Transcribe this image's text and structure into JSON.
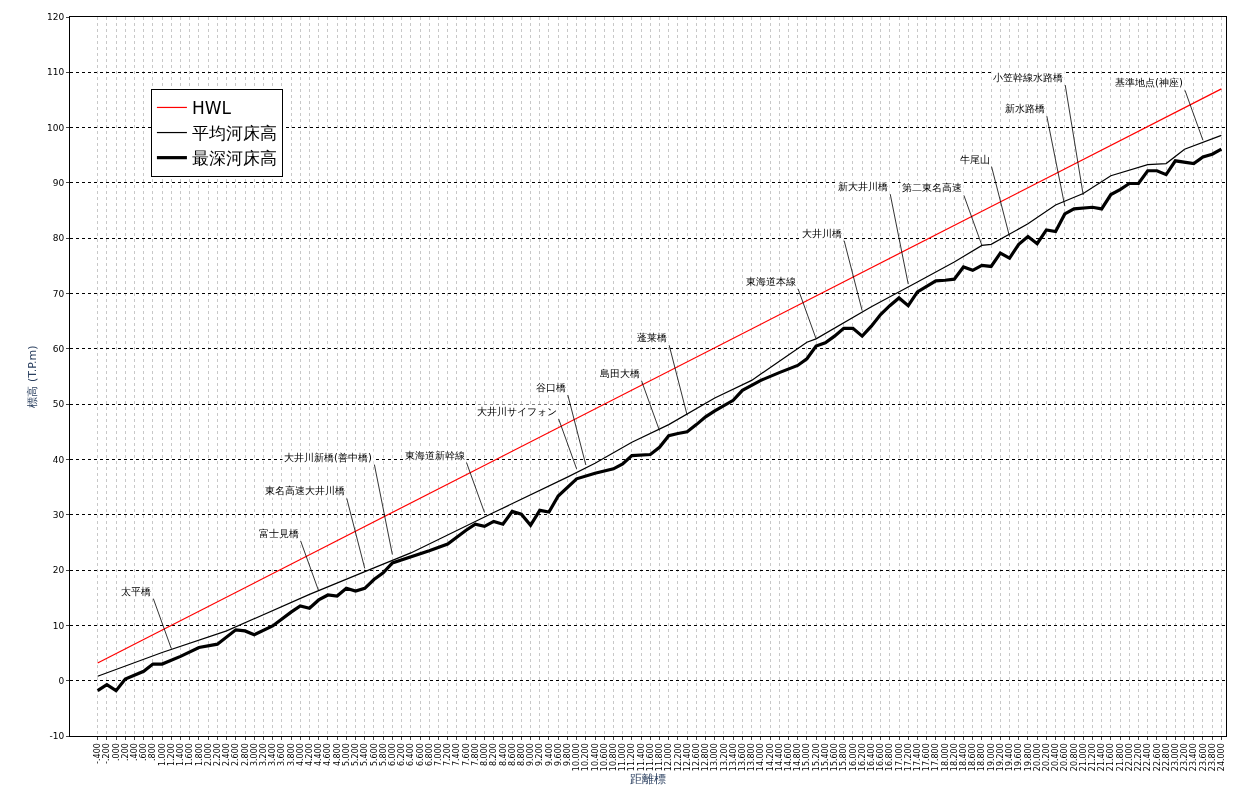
{
  "chart_data": {
    "type": "line",
    "ylabel": "標高 (T.P.m)",
    "xlabel": "距離標",
    "ylim": [
      -10,
      120
    ],
    "yticks": [
      -10,
      0,
      10,
      20,
      30,
      40,
      50,
      60,
      70,
      80,
      90,
      100,
      110,
      120
    ],
    "categories": [
      "-.400",
      "-.200",
      ".000",
      ".200",
      ".400",
      ".600",
      ".800",
      "1.000",
      "1.200",
      "1.400",
      "1.600",
      "1.800",
      "2.000",
      "2.200",
      "2.400",
      "2.600",
      "2.800",
      "3.000",
      "3.200",
      "3.400",
      "3.600",
      "3.800",
      "4.000",
      "4.200",
      "4.400",
      "4.600",
      "4.800",
      "5.000",
      "5.200",
      "5.400",
      "5.600",
      "5.800",
      "6.000",
      "6.200",
      "6.400",
      "6.600",
      "6.800",
      "7.000",
      "7.200",
      "7.400",
      "7.600",
      "7.800",
      "8.000",
      "8.200",
      "8.400",
      "8.600",
      "8.800",
      "9.000",
      "9.200",
      "9.400",
      "9.600",
      "9.800",
      "10.000",
      "10.200",
      "10.400",
      "10.600",
      "10.800",
      "11.000",
      "11.200",
      "11.400",
      "11.600",
      "11.800",
      "12.000",
      "12.200",
      "12.400",
      "12.600",
      "12.800",
      "13.000",
      "13.200",
      "13.400",
      "13.600",
      "13.800",
      "14.000",
      "14.200",
      "14.400",
      "14.600",
      "14.800",
      "15.000",
      "15.200",
      "15.400",
      "15.600",
      "15.800",
      "16.000",
      "16.200",
      "16.400",
      "16.600",
      "16.800",
      "17.000",
      "17.200",
      "17.400",
      "17.600",
      "17.800",
      "18.000",
      "18.200",
      "18.400",
      "18.600",
      "18.800",
      "19.000",
      "19.200",
      "19.400",
      "19.600",
      "19.800",
      "20.000",
      "20.200",
      "20.400",
      "20.600",
      "20.800",
      "21.000",
      "21.200",
      "21.400",
      "21.600",
      "21.800",
      "22.000",
      "22.200",
      "22.400",
      "22.600",
      "22.800",
      "23.000",
      "23.200",
      "23.400",
      "23.600",
      "23.800",
      "24.000"
    ],
    "grid": true,
    "legend": "top left",
    "line_style": "solid",
    "series": [
      {
        "name": "HWL",
        "color": "#ff0000",
        "x": [
          "-.400",
          "24.000"
        ],
        "values": [
          3.2,
          107.0
        ]
      },
      {
        "name": "平均河床高",
        "color": "#000000",
        "x": [
          "-.400",
          "1.000",
          "2.400",
          "4.200",
          "5.600",
          "6.400",
          "8.200",
          "9.800",
          "10.400",
          "11.200",
          "12.000",
          "13.000",
          "13.800",
          "15.000",
          "15.200",
          "16.400",
          "17.400",
          "18.200",
          "18.800",
          "19.000",
          "19.800",
          "20.400",
          "21.000",
          "21.600",
          "22.400",
          "22.800",
          "23.200",
          "24.000"
        ],
        "values": [
          0.8,
          5.1,
          9.0,
          15.6,
          20.4,
          23.1,
          30.4,
          36.8,
          39.3,
          43.1,
          46.3,
          51.1,
          54.3,
          61.2,
          61.8,
          67.6,
          72.1,
          75.7,
          78.7,
          78.9,
          82.6,
          86.0,
          88.1,
          91.3,
          93.3,
          93.5,
          96.1,
          98.6
        ]
      },
      {
        "name": "最深河床高",
        "color": "#000000",
        "x": [
          "-.400",
          "-.200",
          ".000",
          ".200",
          ".600",
          ".800",
          "1.000",
          "1.400",
          "1.800",
          "2.200",
          "2.600",
          "2.800",
          "3.000",
          "3.400",
          "3.800",
          "4.000",
          "4.200",
          "4.400",
          "4.600",
          "4.800",
          "5.000",
          "5.200",
          "5.400",
          "5.600",
          "5.800",
          "6.000",
          "6.800",
          "7.200",
          "7.600",
          "7.800",
          "8.000",
          "8.200",
          "8.400",
          "8.600",
          "8.800",
          "9.000",
          "9.200",
          "9.400",
          "9.600",
          "10.000",
          "10.400",
          "10.800",
          "11.000",
          "11.200",
          "11.600",
          "11.800",
          "12.000",
          "12.200",
          "12.400",
          "12.600",
          "12.800",
          "13.000",
          "13.400",
          "13.600",
          "14.000",
          "14.400",
          "14.800",
          "15.000",
          "15.200",
          "15.400",
          "15.600",
          "15.800",
          "16.000",
          "16.200",
          "16.400",
          "16.600",
          "16.800",
          "17.000",
          "17.200",
          "17.400",
          "17.800",
          "18.000",
          "18.200",
          "18.400",
          "18.600",
          "18.800",
          "19.000",
          "19.200",
          "19.400",
          "19.600",
          "19.800",
          "20.000",
          "20.200",
          "20.400",
          "20.600",
          "20.800",
          "21.200",
          "21.400",
          "21.600",
          "21.800",
          "22.000",
          "22.200",
          "22.400",
          "22.600",
          "22.800",
          "23.000",
          "23.400",
          "23.600",
          "23.800",
          "24.000"
        ],
        "values": [
          -1.8,
          -0.7,
          -1.8,
          0.3,
          1.7,
          3.0,
          3.0,
          4.4,
          6.0,
          6.6,
          9.2,
          9.0,
          8.3,
          9.9,
          12.4,
          13.5,
          13.1,
          14.6,
          15.5,
          15.3,
          16.7,
          16.2,
          16.7,
          18.3,
          19.5,
          21.3,
          23.5,
          24.7,
          27.2,
          28.3,
          27.9,
          28.8,
          28.3,
          30.6,
          30.1,
          28.1,
          30.8,
          30.5,
          33.4,
          36.5,
          37.5,
          38.3,
          39.2,
          40.7,
          40.9,
          42.2,
          44.3,
          44.7,
          45.0,
          46.3,
          47.7,
          48.8,
          50.7,
          52.5,
          54.3,
          55.7,
          57.0,
          58.2,
          60.5,
          61.1,
          62.3,
          63.7,
          63.7,
          62.3,
          64.1,
          66.2,
          67.8,
          69.2,
          67.8,
          70.3,
          72.3,
          72.4,
          72.6,
          74.8,
          74.2,
          75.1,
          74.9,
          77.3,
          76.4,
          78.9,
          80.3,
          79.0,
          81.5,
          81.2,
          84.4,
          85.3,
          85.6,
          85.3,
          87.9,
          88.8,
          89.9,
          89.9,
          92.2,
          92.2,
          91.5,
          94.0,
          93.5,
          94.7,
          95.2,
          96.1
        ]
      }
    ],
    "annotations": [
      {
        "text": "太平橋",
        "x": "1.200",
        "y": 5.8
      },
      {
        "text": "富士見橋",
        "x": "4.400",
        "y": 16.2
      },
      {
        "text": "東名高速大井川橋",
        "x": "5.400",
        "y": 20.3
      },
      {
        "text": "大井川新橋(善中橋)",
        "x": "6.000",
        "y": 22.8
      },
      {
        "text": "東海道新幹線",
        "x": "8.000",
        "y": 30.4
      },
      {
        "text": "大井川サイフォン",
        "x": "10.000",
        "y": 38.3
      },
      {
        "text": "谷口橋",
        "x": "10.200",
        "y": 39.0
      },
      {
        "text": "島田大橋",
        "x": "11.800",
        "y": 45.2
      },
      {
        "text": "蓬莱橋",
        "x": "12.400",
        "y": 48.0
      },
      {
        "text": "東海道本線",
        "x": "15.200",
        "y": 61.8
      },
      {
        "text": "大井川橋",
        "x": "16.200",
        "y": 66.9
      },
      {
        "text": "新大井川橋",
        "x": "17.200",
        "y": 71.7
      },
      {
        "text": "第二東名高速",
        "x": "18.800",
        "y": 78.7
      },
      {
        "text": "牛尾山",
        "x": "19.400",
        "y": 80.3
      },
      {
        "text": "新水路橋",
        "x": "20.600",
        "y": 85.8
      },
      {
        "text": "小笠幹線水路橋",
        "x": "21.000",
        "y": 87.8
      },
      {
        "text": "基準地点(神座)",
        "x": "23.600",
        "y": 97.7
      }
    ]
  }
}
